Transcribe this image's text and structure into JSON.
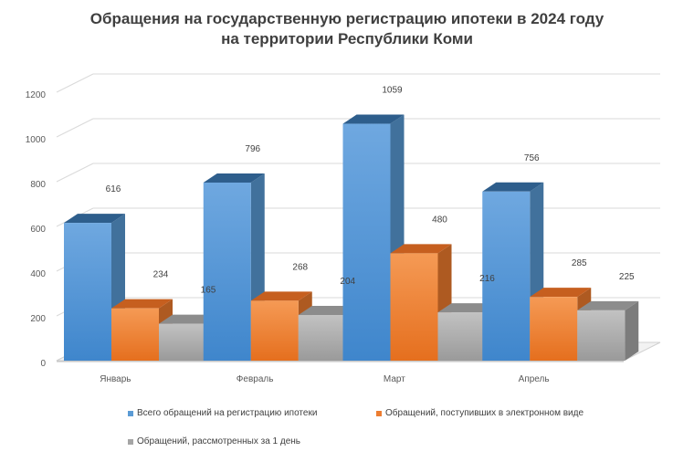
{
  "chart_data": {
    "type": "bar",
    "title_line1": "Обращения на государственную регистрацию ипотеки в 2024 году",
    "title_line2": "на территории Республики Коми",
    "categories": [
      "Январь",
      "Февраль",
      "Март",
      "Апрель"
    ],
    "series": [
      {
        "name": "Всего обращений на регистрацию ипотеки",
        "values": [
          616,
          796,
          1059,
          756
        ],
        "color": "#5B9BD5"
      },
      {
        "name": "Обращений, поступивших в электронном виде",
        "values": [
          234,
          268,
          480,
          285
        ],
        "color": "#ED7D31"
      },
      {
        "name": "Обращений, рассмотренных за 1 день",
        "values": [
          165,
          204,
          216,
          225
        ],
        "color": "#A5A5A5"
      }
    ],
    "yticks": [
      0,
      200,
      400,
      600,
      800,
      1000,
      1200
    ],
    "ylim": [
      0,
      1200
    ],
    "grid": true,
    "legend_position": "bottom"
  }
}
